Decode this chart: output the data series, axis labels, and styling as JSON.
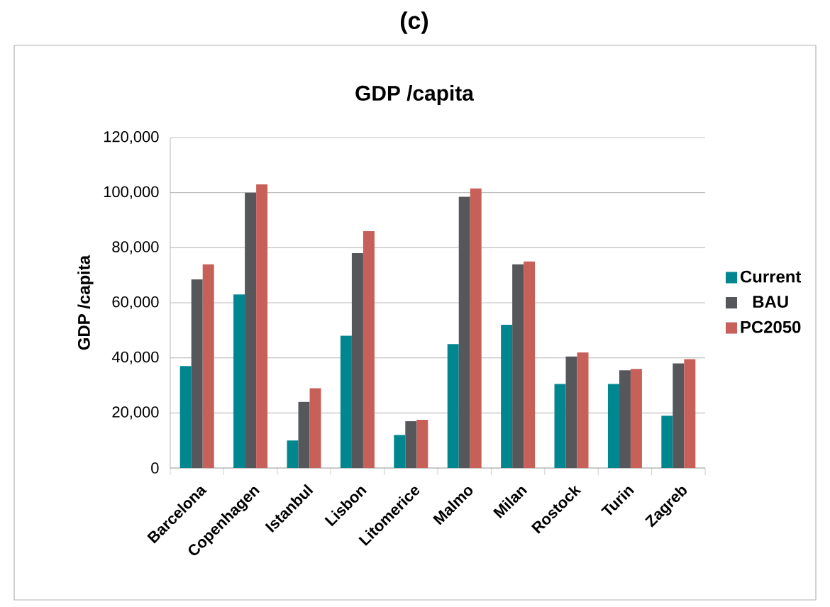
{
  "chart_data": {
    "type": "bar",
    "title": "GDP /capita",
    "ylabel": "GDP /capita",
    "annotations": [
      "(c)"
    ],
    "categories": [
      "Barcelona",
      "Copenhagen",
      "Istanbul",
      "Lisbon",
      "Litomerice",
      "Malmo",
      "Milan",
      "Rostock",
      "Turin",
      "Zagreb"
    ],
    "series": [
      {
        "name": "Current",
        "color": "#00868f",
        "values": [
          37000,
          63000,
          10000,
          48000,
          12000,
          45000,
          52000,
          30500,
          30500,
          19000
        ]
      },
      {
        "name": "BAU",
        "color": "#55575b",
        "values": [
          68500,
          100000,
          24000,
          78000,
          17000,
          98500,
          74000,
          40500,
          35500,
          38000
        ]
      },
      {
        "name": "PC2050",
        "color": "#c8605a",
        "values": [
          74000,
          103000,
          29000,
          86000,
          17500,
          101500,
          75000,
          42000,
          36000,
          39500
        ]
      }
    ],
    "ylim": [
      0,
      120000
    ],
    "yticks": [
      0,
      {
        "value": 20000,
        "label": "20,000"
      },
      {
        "value": 40000,
        "label": "40,000"
      },
      {
        "value": 60000,
        "label": "60,000"
      },
      {
        "value": 80000,
        "label": "80,000"
      },
      {
        "value": 100000,
        "label": "100,000"
      },
      {
        "value": 120000,
        "label": "120,000"
      }
    ],
    "grid": "y",
    "legend": "right"
  }
}
